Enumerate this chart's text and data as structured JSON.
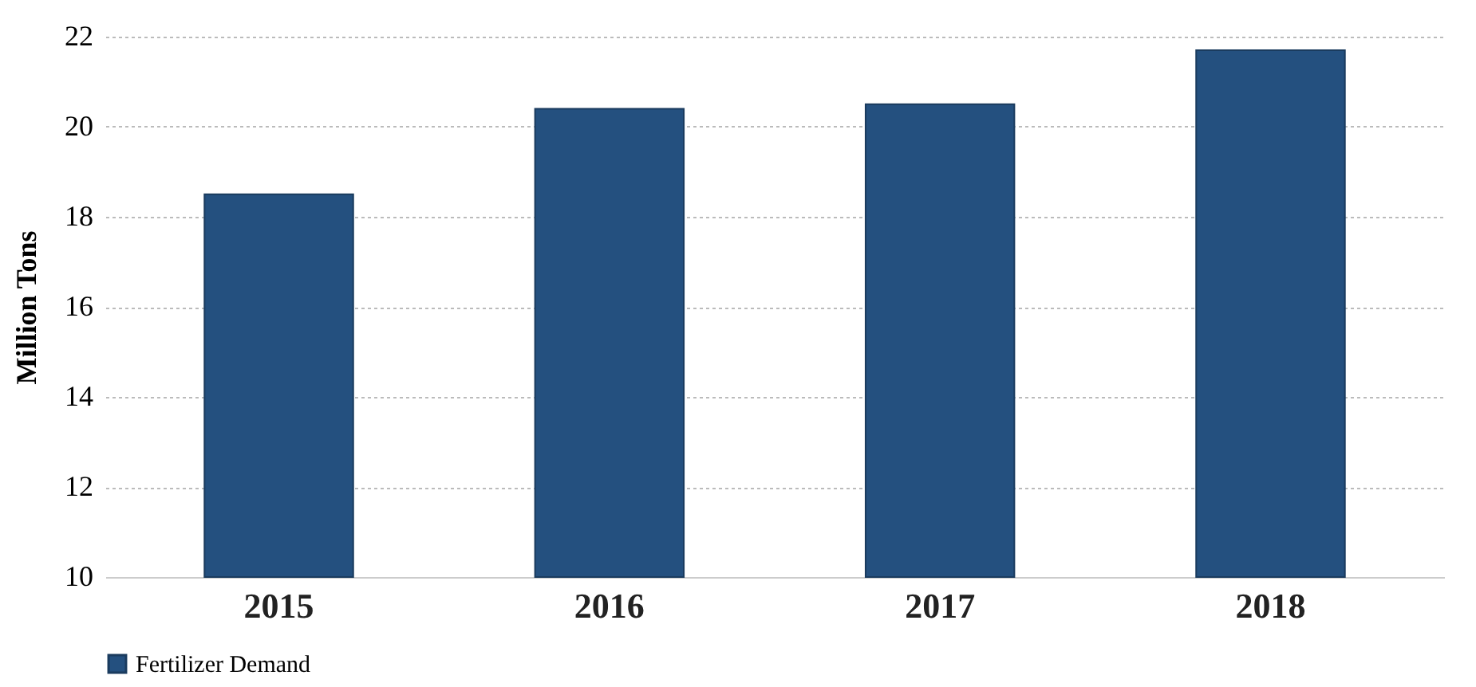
{
  "chart_data": {
    "type": "bar",
    "ylabel": "Million Tons",
    "categories": [
      "2015",
      "2016",
      "2017",
      "2018"
    ],
    "series": [
      {
        "name": "Fertilizer Demand",
        "color": "#24507f",
        "values": [
          18.5,
          20.4,
          20.5,
          21.7
        ]
      }
    ],
    "ylim": [
      10,
      22
    ],
    "yticks": [
      10,
      12,
      14,
      16,
      18,
      20,
      22
    ],
    "grid": "y",
    "legend": "bottom"
  }
}
